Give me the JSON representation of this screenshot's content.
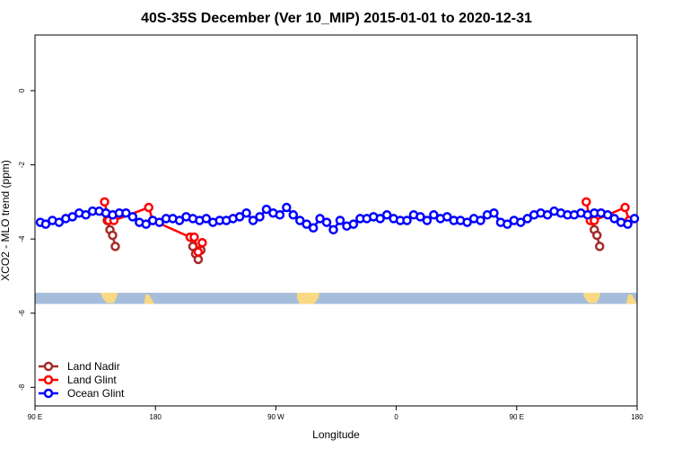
{
  "chart_data": {
    "type": "scatter",
    "title": "40S-35S December (Ver 10_MIP)   2015-01-01 to 2020-12-31",
    "xlabel": "Longitude",
    "ylabel": "XCO2 - MLO trend (ppm)",
    "xlim": [
      90,
      540
    ],
    "ylim": [
      -8.5,
      1.5
    ],
    "x_ticks": [
      {
        "value": 90,
        "label": "90 E"
      },
      {
        "value": 180,
        "label": "180"
      },
      {
        "value": 270,
        "label": "90 W"
      },
      {
        "value": 360,
        "label": "0"
      },
      {
        "value": 450,
        "label": "90 E"
      },
      {
        "value": 540,
        "label": "180"
      }
    ],
    "y_ticks": [
      {
        "value": 0,
        "label": "0"
      },
      {
        "value": -2,
        "label": "-2"
      },
      {
        "value": -4,
        "label": "-4"
      },
      {
        "value": -6,
        "label": "-6"
      },
      {
        "value": -8,
        "label": "-8"
      }
    ],
    "grid": false,
    "legend_position": "bottom-left",
    "land_band": {
      "y_top": -5.45,
      "y_bottom": -5.75,
      "ocean_color": "#a5bddb",
      "land_color": "#fbd982"
    },
    "series": [
      {
        "name": "Land Nadir",
        "color": "#a52a2a",
        "x": [
          144,
          146,
          148,
          150,
          206,
          208,
          210,
          212,
          214,
          506,
          508,
          510,
          512
        ],
        "y": [
          -3.5,
          -3.75,
          -3.9,
          -4.2,
          -3.95,
          -4.2,
          -4.4,
          -4.55,
          -4.3,
          -3.5,
          -3.75,
          -3.9,
          -4.2
        ]
      },
      {
        "name": "Land Glint",
        "color": "#ff0000",
        "x": [
          142,
          145,
          149,
          175,
          178,
          206,
          209,
          212,
          215,
          502,
          505,
          508,
          531,
          534
        ],
        "y": [
          -3.0,
          -3.5,
          -3.5,
          -3.15,
          -3.5,
          -3.95,
          -3.95,
          -4.35,
          -4.1,
          -3.0,
          -3.5,
          -3.5,
          -3.15,
          -3.5
        ]
      },
      {
        "name": "Ocean Glint",
        "color": "#0000ff",
        "x": [
          94,
          98,
          103,
          108,
          113,
          118,
          123,
          128,
          133,
          138,
          143,
          148,
          153,
          158,
          163,
          168,
          173,
          178,
          183,
          188,
          193,
          198,
          203,
          208,
          213,
          218,
          223,
          228,
          233,
          238,
          243,
          248,
          253,
          258,
          263,
          268,
          273,
          278,
          283,
          288,
          293,
          298,
          303,
          308,
          313,
          318,
          323,
          328,
          333,
          338,
          343,
          348,
          353,
          358,
          363,
          368,
          373,
          378,
          383,
          388,
          393,
          398,
          403,
          408,
          413,
          418,
          423,
          428,
          433,
          438,
          443,
          448,
          453,
          458,
          463,
          468,
          473,
          478,
          483,
          488,
          493,
          498,
          503,
          508,
          513,
          518,
          523,
          528,
          533,
          538
        ],
        "y": [
          -3.55,
          -3.6,
          -3.5,
          -3.55,
          -3.45,
          -3.4,
          -3.3,
          -3.35,
          -3.25,
          -3.25,
          -3.3,
          -3.35,
          -3.3,
          -3.3,
          -3.4,
          -3.55,
          -3.6,
          -3.5,
          -3.55,
          -3.45,
          -3.45,
          -3.5,
          -3.4,
          -3.45,
          -3.5,
          -3.45,
          -3.55,
          -3.5,
          -3.5,
          -3.45,
          -3.4,
          -3.3,
          -3.5,
          -3.4,
          -3.2,
          -3.3,
          -3.35,
          -3.15,
          -3.35,
          -3.5,
          -3.6,
          -3.7,
          -3.45,
          -3.55,
          -3.75,
          -3.5,
          -3.65,
          -3.6,
          -3.45,
          -3.45,
          -3.4,
          -3.45,
          -3.35,
          -3.45,
          -3.5,
          -3.5,
          -3.35,
          -3.4,
          -3.5,
          -3.35,
          -3.45,
          -3.4,
          -3.5,
          -3.5,
          -3.55,
          -3.45,
          -3.5,
          -3.35,
          -3.3,
          -3.55,
          -3.6,
          -3.5,
          -3.55,
          -3.45,
          -3.35,
          -3.3,
          -3.35,
          -3.25,
          -3.3,
          -3.35,
          -3.35,
          -3.3,
          -3.35,
          -3.3,
          -3.3,
          -3.35,
          -3.45,
          -3.55,
          -3.6,
          -3.45
        ]
      }
    ]
  }
}
